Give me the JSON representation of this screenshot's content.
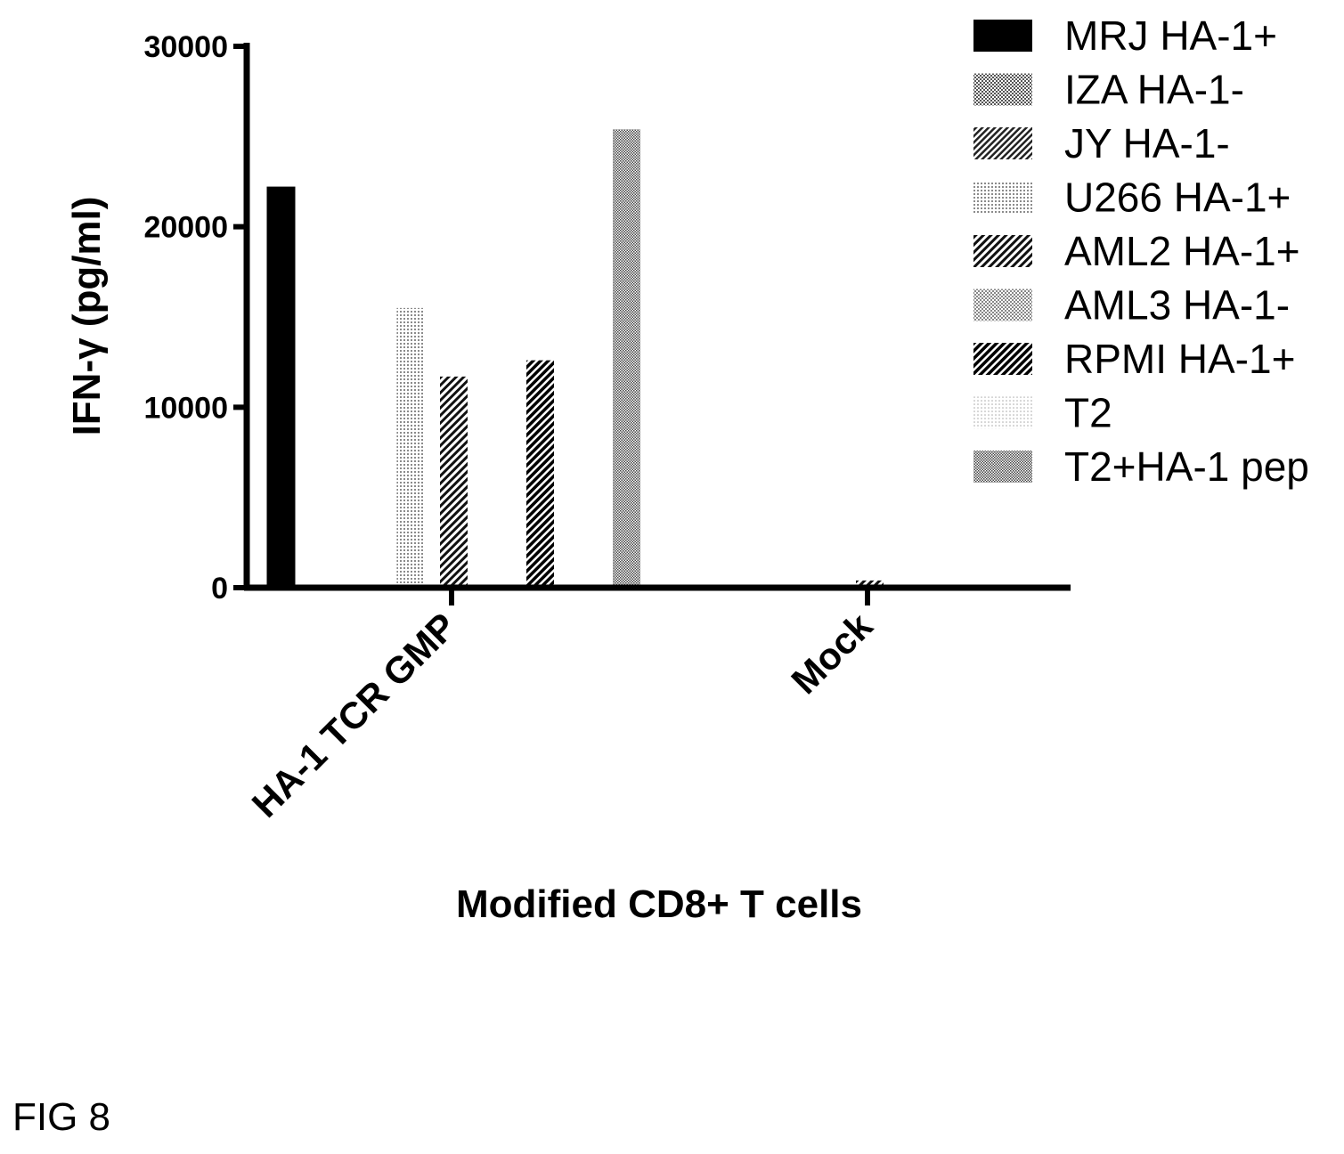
{
  "figure_label": "FIG 8",
  "chart_data": {
    "type": "bar",
    "xlabel": "Modified CD8+ T cells",
    "ylabel": "IFN-γ (pg/ml)",
    "ylim": [
      0,
      30000
    ],
    "yticks": [
      0,
      10000,
      20000,
      30000
    ],
    "categories": [
      "HA-1 TCR GMP",
      "Mock"
    ],
    "legend_position": "top-right",
    "series": [
      {
        "name": "MRJ HA-1+",
        "pattern": "solid",
        "values": [
          22200,
          0
        ]
      },
      {
        "name": "IZA HA-1-",
        "pattern": "checker",
        "values": [
          0,
          0
        ]
      },
      {
        "name": "JY HA-1-",
        "pattern": "diag-dense",
        "values": [
          0,
          0
        ]
      },
      {
        "name": "U266 HA-1+",
        "pattern": "dots",
        "values": [
          15500,
          200
        ]
      },
      {
        "name": "AML2 HA-1+",
        "pattern": "diag",
        "values": [
          11700,
          400
        ]
      },
      {
        "name": "AML3 HA-1-",
        "pattern": "checker-light",
        "values": [
          0,
          0
        ]
      },
      {
        "name": "RPMI HA-1+",
        "pattern": "diag-bold",
        "values": [
          12600,
          0
        ]
      },
      {
        "name": "T2",
        "pattern": "dots-light",
        "values": [
          0,
          0
        ]
      },
      {
        "name": "T2+HA-1 pep",
        "pattern": "checker-dense",
        "values": [
          25400,
          0
        ]
      }
    ]
  }
}
